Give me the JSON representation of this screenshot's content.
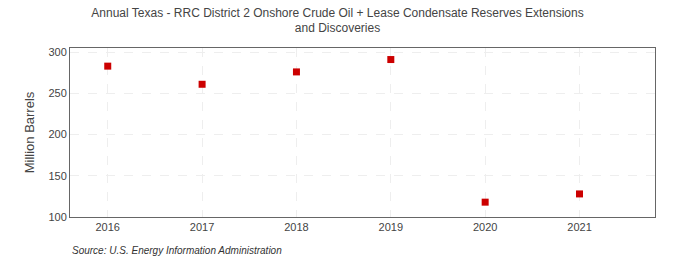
{
  "chart_data": {
    "type": "scatter",
    "title": "Annual Texas - RRC District 2 Onshore Crude Oil + Lease Condensate Reserves Extensions\nand Discoveries",
    "y_label": "Million Barrels",
    "annotations": [
      "Source: U.S. Energy Information Administration"
    ],
    "x": [
      2016,
      2017,
      2018,
      2019,
      2020,
      2021
    ],
    "values": [
      283,
      261,
      276,
      291,
      118,
      128
    ],
    "color": "#cc0000",
    "marker": "square",
    "xlim": [
      2015.6,
      2021.8
    ],
    "xticks": [
      2016,
      2017,
      2018,
      2019,
      2020,
      2021
    ],
    "ylim": [
      100,
      305
    ],
    "yticks": [
      100,
      150,
      200,
      250,
      300
    ],
    "grid": true
  }
}
